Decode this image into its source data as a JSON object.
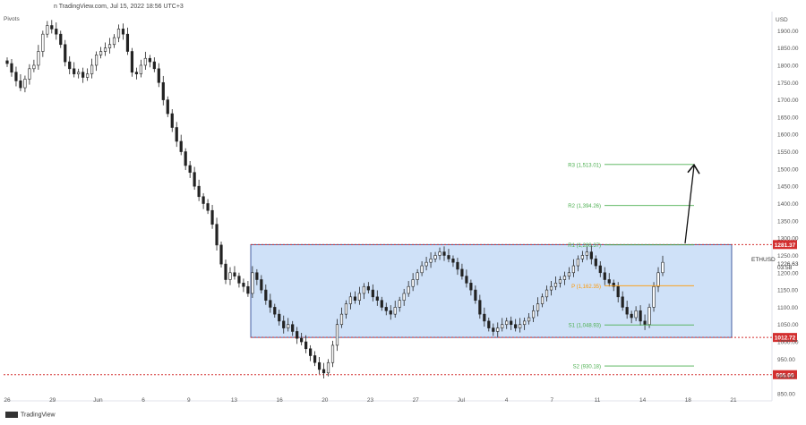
{
  "header": {
    "text": "n TradingView.com, Jul 15, 2022 18:56 UTC+3",
    "pivots_label": "Pivots",
    "brand": "TradingView"
  },
  "chart_data": {
    "type": "candlestick",
    "symbol": "ETHUSD",
    "currency": "USD",
    "ylim": [
      850,
      1950
    ],
    "y_ticks": [
      850,
      900,
      950,
      1000,
      1050,
      1100,
      1150,
      1200,
      1250,
      1300,
      1350,
      1400,
      1450,
      1500,
      1550,
      1600,
      1650,
      1700,
      1750,
      1800,
      1850,
      1900
    ],
    "x_ticks": [
      "26",
      "29",
      "Jun",
      "6",
      "9",
      "13",
      "16",
      "20",
      "23",
      "27",
      "Jul",
      "4",
      "7",
      "11",
      "14",
      "18",
      "21"
    ],
    "price_close": [
      1805,
      1780,
      1755,
      1735,
      1760,
      1790,
      1800,
      1840,
      1890,
      1915,
      1905,
      1890,
      1860,
      1810,
      1790,
      1775,
      1780,
      1765,
      1775,
      1800,
      1830,
      1840,
      1850,
      1860,
      1880,
      1905,
      1890,
      1840,
      1780,
      1775,
      1800,
      1820,
      1810,
      1790,
      1750,
      1700,
      1660,
      1620,
      1580,
      1550,
      1510,
      1490,
      1450,
      1420,
      1400,
      1380,
      1340,
      1280,
      1225,
      1180,
      1200,
      1190,
      1170,
      1160,
      1140,
      1200,
      1180,
      1150,
      1120,
      1100,
      1080,
      1060,
      1040,
      1050,
      1030,
      1010,
      1000,
      980,
      960,
      940,
      920,
      910,
      940,
      990,
      1050,
      1080,
      1110,
      1130,
      1120,
      1140,
      1160,
      1150,
      1130,
      1120,
      1100,
      1090,
      1080,
      1100,
      1120,
      1140,
      1160,
      1180,
      1200,
      1220,
      1230,
      1240,
      1250,
      1260,
      1250,
      1240,
      1230,
      1210,
      1190,
      1170,
      1150,
      1120,
      1080,
      1060,
      1040,
      1030,
      1040,
      1050,
      1060,
      1050,
      1040,
      1050,
      1060,
      1070,
      1090,
      1110,
      1130,
      1150,
      1160,
      1170,
      1180,
      1190,
      1200,
      1220,
      1240,
      1250,
      1260,
      1240,
      1220,
      1200,
      1180,
      1170,
      1160,
      1130,
      1100,
      1080,
      1070,
      1090,
      1060,
      1050,
      1100,
      1160,
      1200,
      1230
    ],
    "annotations": {
      "range_top": {
        "value": 1281.37,
        "label": "1281.37"
      },
      "range_bottom": {
        "value": 1012.72,
        "label": "1012.72"
      },
      "support": {
        "value": 905.0,
        "label": "905.00"
      },
      "last_price": {
        "value": 1226.63,
        "label": "1226.63",
        "countdown": "03:58"
      },
      "pivots": [
        {
          "name": "R3",
          "value": 1513.01,
          "label": "R3 (1,513.01)",
          "color": "#4caf50"
        },
        {
          "name": "R2",
          "value": 1394.26,
          "label": "R2 (1,394.26)",
          "color": "#4caf50"
        },
        {
          "name": "R1",
          "value": 1280.37,
          "label": "R1 (1,280.37)",
          "color": "#4caf50"
        },
        {
          "name": "P",
          "value": 1162.35,
          "label": "P (1,162.35)",
          "color": "#ff9800"
        },
        {
          "name": "S1",
          "value": 1048.93,
          "label": "S1 (1,048.93)",
          "color": "#4caf50"
        },
        {
          "name": "S2",
          "value": 930.18,
          "label": "S2 (930.18)",
          "color": "#4caf50"
        }
      ]
    }
  },
  "colors": {
    "candle": "#222222",
    "range_fill": "#c7dcf7",
    "range_stroke": "#1e3a8a",
    "level_red": "#d32f2f",
    "arrow": "#111111"
  }
}
